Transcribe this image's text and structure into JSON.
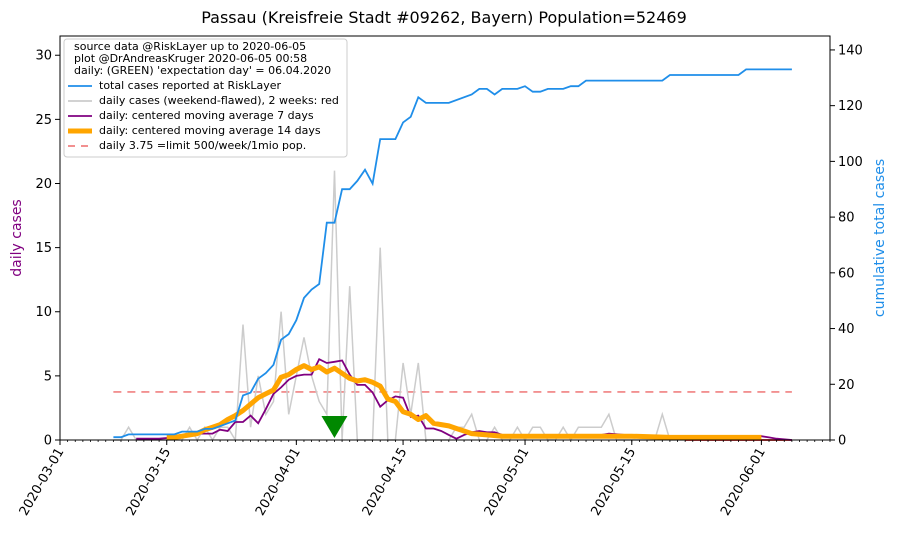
{
  "chart_data": {
    "type": "line",
    "title": "Passau (Kreisfreie Stadt #09262, Bayern) Population=52469",
    "y_left_label": "daily cases",
    "y_right_label": "cumulative total cases",
    "y_left_color": "#800080",
    "y_right_color": "#1f8ee9",
    "x_range": [
      "2020-03-01",
      "2020-06-10"
    ],
    "y_left_range": [
      0,
      31.5
    ],
    "y_right_range": [
      0,
      145
    ],
    "x_ticks": [
      "2020-03-01",
      "2020-03-15",
      "2020-04-01",
      "2020-04-15",
      "2020-05-01",
      "2020-05-15",
      "2020-06-01"
    ],
    "y_left_ticks": [
      0,
      5,
      10,
      15,
      20,
      25,
      30
    ],
    "y_right_ticks": [
      0,
      20,
      40,
      60,
      80,
      100,
      120,
      140
    ],
    "legend_position": "top-left",
    "legend_header": [
      "source data @RiskLayer up to 2020-06-05",
      "plot @DrAndreasKruger 2020-06-05 00:58",
      "daily: (GREEN) 'expectation day' = 06.04.2020"
    ],
    "legend_entries": [
      {
        "label": "total cases reported at RiskLayer",
        "color": "#1f8ee9",
        "style": "solid"
      },
      {
        "label": "daily cases (weekend-flawed), 2 weeks: red",
        "color": "#cccccc",
        "style": "solid"
      },
      {
        "label": "daily: centered moving average 7 days",
        "color": "#800080",
        "style": "solid"
      },
      {
        "label": "daily: centered moving average 14 days",
        "color": "#ffa500",
        "style": "thick"
      },
      {
        "label": "daily 3.75 =limit 500/week/1mio pop.",
        "color": "#f08080",
        "style": "dashed"
      }
    ],
    "expectation_day": "2020-04-06",
    "limit_value": 3.75,
    "series": {
      "total": {
        "x": [
          "2020-03-08",
          "2020-03-09",
          "2020-03-10",
          "2020-03-11",
          "2020-03-15",
          "2020-03-16",
          "2020-03-17",
          "2020-03-18",
          "2020-03-19",
          "2020-03-20",
          "2020-03-21",
          "2020-03-22",
          "2020-03-23",
          "2020-03-24",
          "2020-03-25",
          "2020-03-26",
          "2020-03-27",
          "2020-03-28",
          "2020-03-29",
          "2020-03-30",
          "2020-03-31",
          "2020-04-01",
          "2020-04-02",
          "2020-04-03",
          "2020-04-04",
          "2020-04-05",
          "2020-04-06",
          "2020-04-07",
          "2020-04-08",
          "2020-04-09",
          "2020-04-10",
          "2020-04-11",
          "2020-04-12",
          "2020-04-13",
          "2020-04-14",
          "2020-04-15",
          "2020-04-16",
          "2020-04-17",
          "2020-04-18",
          "2020-04-21",
          "2020-04-24",
          "2020-04-25",
          "2020-04-26",
          "2020-04-27",
          "2020-04-28",
          "2020-04-30",
          "2020-05-01",
          "2020-05-02",
          "2020-05-03",
          "2020-05-04",
          "2020-05-06",
          "2020-05-07",
          "2020-05-08",
          "2020-05-09",
          "2020-05-12",
          "2020-05-19",
          "2020-05-20",
          "2020-05-29",
          "2020-05-30",
          "2020-06-05"
        ],
        "y": [
          1,
          1,
          2,
          2,
          2,
          2,
          3,
          3,
          3,
          4,
          4,
          5,
          6,
          7,
          16,
          17,
          22,
          24,
          27,
          36,
          38,
          43,
          51,
          54,
          56,
          78,
          78,
          90,
          90,
          93,
          97,
          92,
          108,
          108,
          108,
          114,
          116,
          123,
          121,
          121,
          124,
          126,
          126,
          124,
          126,
          126,
          127,
          125,
          125,
          126,
          126,
          127,
          127,
          129,
          129,
          129,
          131,
          131,
          133,
          133
        ]
      },
      "daily": {
        "x": [
          "2020-03-08",
          "2020-03-09",
          "2020-03-10",
          "2020-03-11",
          "2020-03-12",
          "2020-03-13",
          "2020-03-14",
          "2020-03-15",
          "2020-03-16",
          "2020-03-17",
          "2020-03-18",
          "2020-03-19",
          "2020-03-20",
          "2020-03-21",
          "2020-03-22",
          "2020-03-23",
          "2020-03-24",
          "2020-03-25",
          "2020-03-26",
          "2020-03-27",
          "2020-03-28",
          "2020-03-29",
          "2020-03-30",
          "2020-03-31",
          "2020-04-01",
          "2020-04-02",
          "2020-04-03",
          "2020-04-04",
          "2020-04-05",
          "2020-04-06",
          "2020-04-07",
          "2020-04-08",
          "2020-04-09",
          "2020-04-10",
          "2020-04-11",
          "2020-04-12",
          "2020-04-13",
          "2020-04-14",
          "2020-04-15",
          "2020-04-16",
          "2020-04-17",
          "2020-04-18",
          "2020-04-19",
          "2020-04-20",
          "2020-04-21",
          "2020-04-22",
          "2020-04-23",
          "2020-04-24",
          "2020-04-25",
          "2020-04-26",
          "2020-04-27",
          "2020-04-28",
          "2020-04-29",
          "2020-04-30",
          "2020-05-01",
          "2020-05-02",
          "2020-05-03",
          "2020-05-04",
          "2020-05-05",
          "2020-05-06",
          "2020-05-07",
          "2020-05-08",
          "2020-05-09",
          "2020-05-10",
          "2020-05-11",
          "2020-05-12",
          "2020-05-13",
          "2020-05-14",
          "2020-05-15",
          "2020-05-16",
          "2020-05-17",
          "2020-05-18",
          "2020-05-19",
          "2020-05-20",
          "2020-05-21",
          "2020-05-22",
          "2020-05-23",
          "2020-05-24",
          "2020-05-25",
          "2020-05-26",
          "2020-05-27",
          "2020-05-28",
          "2020-05-29",
          "2020-05-30",
          "2020-05-31",
          "2020-06-01",
          "2020-06-02",
          "2020-06-03",
          "2020-06-04",
          "2020-06-05"
        ],
        "y": [
          0,
          0,
          1,
          0,
          0,
          0,
          0,
          0,
          0,
          0,
          1,
          0,
          1,
          0,
          1,
          1,
          0,
          9,
          1,
          5,
          2,
          3,
          10,
          2,
          5,
          8,
          5,
          3,
          2,
          21,
          0,
          12,
          0,
          0,
          0,
          15,
          0,
          0,
          6,
          2,
          6,
          0,
          0,
          0,
          0,
          1,
          1,
          2,
          0,
          0,
          1,
          0,
          0,
          1,
          0,
          1,
          1,
          0,
          0,
          1,
          0,
          1,
          1,
          1,
          1,
          2,
          0,
          0,
          0,
          0,
          0,
          0,
          2,
          0,
          0,
          0,
          0,
          0,
          0,
          0,
          0,
          0,
          0,
          0,
          0,
          0,
          0,
          0,
          0,
          0
        ],
        "red_from": "2020-05-22"
      },
      "ma7": {
        "x": [
          "2020-03-11",
          "2020-03-12",
          "2020-03-14",
          "2020-03-16",
          "2020-03-19",
          "2020-03-21",
          "2020-03-22",
          "2020-03-23",
          "2020-03-24",
          "2020-03-25",
          "2020-03-26",
          "2020-03-27",
          "2020-03-28",
          "2020-03-29",
          "2020-03-30",
          "2020-03-31",
          "2020-04-01",
          "2020-04-02",
          "2020-04-03",
          "2020-04-04",
          "2020-04-05",
          "2020-04-06",
          "2020-04-07",
          "2020-04-08",
          "2020-04-09",
          "2020-04-10",
          "2020-04-11",
          "2020-04-12",
          "2020-04-13",
          "2020-04-14",
          "2020-04-15",
          "2020-04-16",
          "2020-04-17",
          "2020-04-18",
          "2020-04-19",
          "2020-04-20",
          "2020-04-21",
          "2020-04-22",
          "2020-04-23",
          "2020-04-24",
          "2020-04-25",
          "2020-04-26",
          "2020-04-27",
          "2020-04-28",
          "2020-04-30",
          "2020-05-02",
          "2020-05-05",
          "2020-05-08",
          "2020-05-10",
          "2020-05-12",
          "2020-05-14",
          "2020-05-17",
          "2020-05-20",
          "2020-05-26",
          "2020-05-30",
          "2020-06-01",
          "2020-06-02",
          "2020-06-03",
          "2020-06-05"
        ],
        "y": [
          0.1,
          0.1,
          0.1,
          0.2,
          0.5,
          0.5,
          0.8,
          0.7,
          1.4,
          1.4,
          1.9,
          1.3,
          2.4,
          3.6,
          4.1,
          4.7,
          5.0,
          5.1,
          5.1,
          6.3,
          6.0,
          6.1,
          6.2,
          5.1,
          4.3,
          4.3,
          3.7,
          2.6,
          3.1,
          3.4,
          3.3,
          1.8,
          1.9,
          0.9,
          0.9,
          0.7,
          0.4,
          0.1,
          0.4,
          0.6,
          0.7,
          0.6,
          0.6,
          0.4,
          0.3,
          0.3,
          0.3,
          0.3,
          0.3,
          0.5,
          0.4,
          0.3,
          0.2,
          0.2,
          0.3,
          0.3,
          0.2,
          0.1,
          0.0
        ]
      },
      "ma14": {
        "x": [
          "2020-03-15",
          "2020-03-16",
          "2020-03-17",
          "2020-03-18",
          "2020-03-19",
          "2020-03-20",
          "2020-03-21",
          "2020-03-22",
          "2020-03-23",
          "2020-03-24",
          "2020-03-25",
          "2020-03-26",
          "2020-03-27",
          "2020-03-28",
          "2020-03-29",
          "2020-03-30",
          "2020-03-31",
          "2020-04-01",
          "2020-04-02",
          "2020-04-03",
          "2020-04-04",
          "2020-04-05",
          "2020-04-06",
          "2020-04-07",
          "2020-04-08",
          "2020-04-09",
          "2020-04-10",
          "2020-04-11",
          "2020-04-12",
          "2020-04-13",
          "2020-04-14",
          "2020-04-15",
          "2020-04-16",
          "2020-04-17",
          "2020-04-18",
          "2020-04-19",
          "2020-04-20",
          "2020-04-21",
          "2020-04-22",
          "2020-04-23",
          "2020-04-24",
          "2020-04-26",
          "2020-04-28",
          "2020-05-01",
          "2020-05-05",
          "2020-05-10",
          "2020-05-15",
          "2020-05-20",
          "2020-05-25",
          "2020-05-30",
          "2020-06-01"
        ],
        "y": [
          0.2,
          0.2,
          0.3,
          0.4,
          0.5,
          0.8,
          1.0,
          1.2,
          1.6,
          1.9,
          2.3,
          2.8,
          3.3,
          3.6,
          3.9,
          4.9,
          5.1,
          5.5,
          5.8,
          5.5,
          5.7,
          5.3,
          5.6,
          5.2,
          4.8,
          4.6,
          4.7,
          4.5,
          4.2,
          3.2,
          3.0,
          2.2,
          2.0,
          1.6,
          1.9,
          1.3,
          1.2,
          1.1,
          0.9,
          0.7,
          0.5,
          0.4,
          0.3,
          0.3,
          0.3,
          0.3,
          0.3,
          0.2,
          0.2,
          0.2,
          0.2
        ]
      }
    }
  }
}
